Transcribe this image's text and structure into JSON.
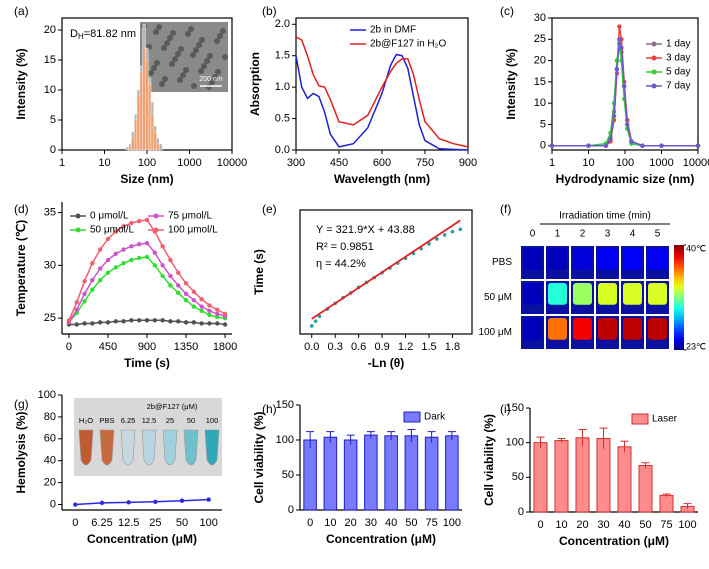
{
  "chart_data": [
    {
      "type": "histogram",
      "label": "(a)",
      "xlabel": "Size (nm)",
      "ylabel": "Intensity (%)",
      "xlog": true,
      "xlim": [
        1,
        10000
      ],
      "xticks": [
        1,
        10,
        100,
        1000,
        10000
      ],
      "ylim": [
        0,
        22
      ],
      "yticks": [
        0,
        5,
        10,
        15,
        20
      ],
      "annotation": {
        "symbol": "D",
        "subscript": "H",
        "text": "=81.82 nm"
      },
      "inset_scale": "200 nm",
      "bins": [
        32,
        37,
        43,
        50,
        58,
        68,
        79,
        92,
        107,
        124,
        144,
        168,
        195,
        230
      ],
      "series": [
        {
          "color": "#b8b8b8",
          "values": [
            0.5,
            1,
            3,
            6,
            10,
            14,
            21,
            17,
            12,
            8,
            4,
            2,
            1
          ]
        },
        {
          "color": "#f0a070",
          "values": [
            0,
            0.5,
            2,
            5,
            9,
            13,
            17,
            15,
            11,
            6,
            3,
            1,
            0
          ]
        }
      ]
    },
    {
      "type": "line",
      "label": "(b)",
      "xlabel": "Wavelength (nm)",
      "ylabel": "Absorption",
      "xlim": [
        300,
        900
      ],
      "xticks": [
        300,
        450,
        600,
        750,
        900
      ],
      "ylim": [
        0,
        2.1
      ],
      "yticks": [
        {
          "value": 0,
          "label": "0.0"
        },
        0.5,
        {
          "value": 1,
          "label": "1.0"
        },
        1.5,
        {
          "value": 2,
          "label": "2.0"
        }
      ],
      "x": [
        300,
        320,
        340,
        360,
        380,
        400,
        420,
        450,
        500,
        550,
        600,
        630,
        650,
        670,
        690,
        710,
        730,
        750,
        800,
        850,
        900
      ],
      "series": [
        {
          "name": "2b in DMF",
          "color": "#2020d0",
          "values": [
            1.5,
            1.0,
            0.82,
            0.9,
            0.85,
            0.6,
            0.25,
            0.05,
            0.1,
            0.35,
            0.9,
            1.35,
            1.52,
            1.5,
            1.3,
            0.85,
            0.4,
            0.15,
            0.02,
            0.01,
            0
          ]
        },
        {
          "name": "2b@F127 in H₂O",
          "color": "#e02020",
          "values": [
            1.8,
            1.75,
            1.5,
            1.2,
            1.02,
            1.0,
            0.8,
            0.45,
            0.4,
            0.55,
            1.0,
            1.25,
            1.38,
            1.45,
            1.45,
            1.2,
            0.8,
            0.45,
            0.18,
            0.1,
            0.05
          ]
        }
      ]
    },
    {
      "type": "line",
      "label": "(c)",
      "xlabel": "Hydrodynamic size (nm)",
      "ylabel": "Intensity (%)",
      "xlog": true,
      "markers": true,
      "xlim": [
        1,
        10000
      ],
      "xticks": [
        1,
        10,
        100,
        1000,
        10000
      ],
      "ylim": [
        -1,
        30
      ],
      "yticks": [
        0,
        5,
        10,
        15,
        20,
        25,
        30
      ],
      "x": [
        1,
        10,
        30,
        40,
        50,
        60,
        70,
        80,
        95,
        115,
        150,
        300,
        1000,
        10000
      ],
      "series": [
        {
          "name": "1 day",
          "color": "#8c6d8c",
          "values": [
            0,
            0,
            0,
            2,
            8,
            18,
            24,
            22,
            14,
            6,
            1,
            0,
            0,
            0
          ]
        },
        {
          "name": "3 day",
          "color": "#e8413c",
          "values": [
            0,
            0,
            0,
            1,
            6,
            17,
            28,
            25,
            15,
            6,
            1,
            0,
            0,
            0
          ]
        },
        {
          "name": "5 day",
          "color": "#33cc33",
          "values": [
            0,
            0,
            0.5,
            3,
            10,
            20,
            24,
            20,
            11,
            4,
            0.5,
            0,
            0,
            0
          ]
        },
        {
          "name": "7 day",
          "color": "#6a5acd",
          "values": [
            0,
            0,
            0,
            1.5,
            7,
            18,
            25,
            23,
            14,
            5,
            1,
            0,
            0,
            0
          ]
        }
      ]
    },
    {
      "type": "line",
      "label": "(d)",
      "xlabel": "Time (s)",
      "ylabel": "Temperature (℃)",
      "markers": true,
      "xlim": [
        -80,
        1880
      ],
      "xticks": [
        0,
        450,
        900,
        1350,
        1800
      ],
      "ylim": [
        23.5,
        36
      ],
      "yticks": [
        25,
        30,
        35
      ],
      "x": [
        0,
        90,
        180,
        270,
        360,
        450,
        540,
        630,
        720,
        810,
        900,
        990,
        1080,
        1170,
        1260,
        1350,
        1440,
        1530,
        1620,
        1710,
        1800
      ],
      "series": [
        {
          "name": "0 μmol/L",
          "color": "#505050",
          "values": [
            24.4,
            24.4,
            24.5,
            24.5,
            24.6,
            24.6,
            24.7,
            24.7,
            24.8,
            24.8,
            24.8,
            24.8,
            24.8,
            24.7,
            24.7,
            24.6,
            24.6,
            24.5,
            24.5,
            24.5,
            24.4
          ]
        },
        {
          "name": "50 μmol/L",
          "color": "#33dd33",
          "values": [
            24.6,
            25.5,
            26.6,
            27.7,
            28.6,
            29.3,
            29.8,
            30.2,
            30.5,
            30.7,
            30.8,
            30.0,
            29.0,
            28.1,
            27.4,
            26.7,
            26.1,
            25.7,
            25.3,
            25.1,
            25.0
          ]
        },
        {
          "name": "75 μmol/L",
          "color": "#cc55cc",
          "values": [
            24.6,
            25.8,
            27.3,
            28.6,
            29.7,
            30.5,
            31.1,
            31.5,
            31.8,
            32.0,
            32.1,
            31.2,
            30.0,
            29.0,
            28.1,
            27.3,
            26.7,
            26.1,
            25.7,
            25.4,
            25.2
          ]
        },
        {
          "name": "100 μmol/L",
          "color": "#f06070",
          "values": [
            24.8,
            26.5,
            28.5,
            30.2,
            31.5,
            32.5,
            33.2,
            33.7,
            34.0,
            34.2,
            34.3,
            33.2,
            31.8,
            30.5,
            29.3,
            28.3,
            27.5,
            26.8,
            26.2,
            25.8,
            25.4
          ]
        }
      ]
    },
    {
      "type": "scatter",
      "label": "(e)",
      "xlabel": "-Ln (θ)",
      "ylabel": "Time (s)",
      "xlim": [
        -0.15,
        2.05
      ],
      "xticks": [
        {
          "value": 0,
          "label": "0.0"
        },
        0.3,
        0.6,
        0.9,
        1.2,
        1.5,
        1.8
      ],
      "ylim": [
        -50,
        720
      ],
      "annotations": [
        "Y = 321.9*X + 43.88",
        "R² = 0.9851",
        "η = 44.2%"
      ],
      "x": [
        0.0,
        0.05,
        0.1,
        0.2,
        0.3,
        0.4,
        0.5,
        0.6,
        0.7,
        0.8,
        0.9,
        1.0,
        1.1,
        1.2,
        1.3,
        1.4,
        1.5,
        1.6,
        1.7,
        1.8,
        1.9
      ],
      "values": [
        0,
        30,
        60,
        105,
        140,
        175,
        205,
        240,
        270,
        300,
        330,
        360,
        390,
        420,
        450,
        480,
        510,
        540,
        565,
        585,
        600
      ],
      "color": "#2a9d9d",
      "fit": {
        "color": "#e02020",
        "x": [
          0,
          1.9
        ],
        "y": [
          43.88,
          655.49
        ]
      }
    },
    {
      "type": "heatmap",
      "label": "(f)",
      "title": "Irradiation time (min)",
      "columns": [
        "0",
        "1",
        "2",
        "3",
        "4",
        "5"
      ],
      "rows": [
        "PBS",
        "50 μM",
        "100 μM"
      ],
      "values": [
        [
          24,
          24,
          24.5,
          25,
          25,
          25
        ],
        [
          24,
          30,
          32,
          33,
          33,
          33
        ],
        [
          24,
          36,
          38,
          39,
          39,
          39
        ]
      ],
      "clim": [
        23,
        40
      ],
      "cticks": [
        {
          "value": 40,
          "label": "40℃"
        },
        {
          "value": 23,
          "label": "23℃"
        }
      ]
    },
    {
      "type": "line",
      "label": "(g)",
      "xlabel": "Concentration (μM)",
      "ylabel": "Hemolysis (%)",
      "markers": true,
      "categories": [
        "0",
        "6.25",
        "12.5",
        "25",
        "50",
        "100"
      ],
      "ylim": [
        -5,
        100
      ],
      "yticks": [
        0,
        20,
        40,
        60,
        80,
        100
      ],
      "inset_title": "2b@F127 (μM)",
      "inset_labels": [
        "H₂O",
        "PBS",
        "6.25",
        "12.5",
        "25",
        "50",
        "100"
      ],
      "series": [
        {
          "color": "#2a2ae0",
          "values": [
            0,
            1.5,
            2,
            2.5,
            3.5,
            4.5
          ]
        }
      ]
    },
    {
      "type": "bar",
      "label": "(h)",
      "xlabel": "Concentration (μM)",
      "ylabel": "Cell viability (%)",
      "categories": [
        "0",
        "10",
        "20",
        "30",
        "40",
        "50",
        "75",
        "100"
      ],
      "ylim": [
        0,
        150
      ],
      "yticks": [
        0,
        50,
        100,
        150
      ],
      "series": [
        {
          "name": "Dark",
          "color": "#7a7aff",
          "edgecolor": "#2020c0",
          "values": [
            100,
            104,
            100,
            107,
            106,
            106,
            104,
            106
          ],
          "errors": [
            12,
            8,
            7,
            5,
            6,
            9,
            8,
            6
          ]
        }
      ]
    },
    {
      "type": "bar",
      "label": "(i)",
      "xlabel": "Concentration (μM)",
      "ylabel": "Cell viability (%)",
      "categories": [
        "0",
        "10",
        "20",
        "30",
        "40",
        "50",
        "75",
        "100"
      ],
      "ylim": [
        0,
        150
      ],
      "yticks": [
        0,
        50,
        100,
        150
      ],
      "series": [
        {
          "name": "Laser",
          "color": "#ff8c8c",
          "edgecolor": "#d03030",
          "values": [
            100,
            103,
            107,
            106,
            94,
            67,
            24,
            8
          ],
          "errors": [
            8,
            3,
            12,
            15,
            8,
            4,
            2,
            4
          ]
        }
      ]
    }
  ]
}
